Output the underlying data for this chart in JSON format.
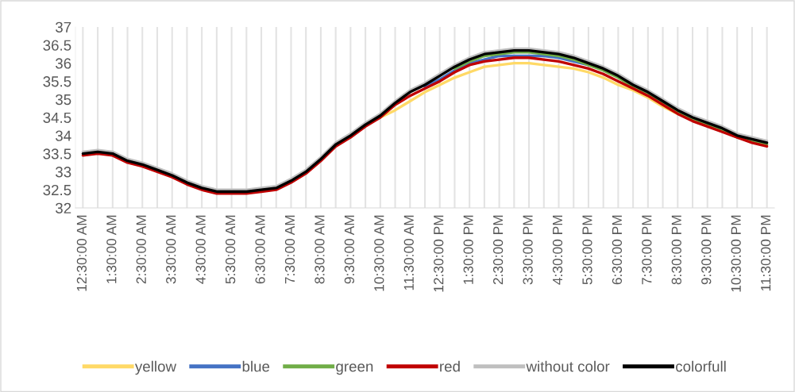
{
  "chart_data": {
    "type": "line",
    "categories": [
      "12:30:00 AM",
      null,
      "1:30:00 AM",
      null,
      "2:30:00 AM",
      null,
      "3:30:00 AM",
      null,
      "4:30:00 AM",
      null,
      "5:30:00 AM",
      null,
      "6:30:00 AM",
      null,
      "7:30:00 AM",
      null,
      "8:30:00 AM",
      null,
      "9:30:00 AM",
      null,
      "10:30:00 AM",
      null,
      "11:30:00 AM",
      null,
      "12:30:00 PM",
      null,
      "1:30:00 PM",
      null,
      "2:30:00 PM",
      null,
      "3:30:00 PM",
      null,
      "4:30:00 PM",
      null,
      "5:30:00 PM",
      null,
      "6:30:00 PM",
      null,
      "7:30:00 PM",
      null,
      "8:30:00 PM",
      null,
      "9:30:00 PM",
      null,
      "10:30:00 PM",
      null,
      "11:30:00 PM"
    ],
    "series": [
      {
        "name": "yellow",
        "color": "#ffd966",
        "values": [
          null,
          null,
          null,
          null,
          null,
          null,
          null,
          null,
          null,
          null,
          null,
          null,
          null,
          null,
          null,
          null,
          null,
          null,
          null,
          null,
          34.5,
          34.7,
          34.95,
          35.2,
          35.4,
          35.6,
          35.75,
          35.9,
          35.95,
          36.0,
          36.0,
          35.95,
          35.9,
          35.85,
          35.75,
          35.6,
          35.4,
          35.25,
          35.05,
          34.8,
          34.6,
          null,
          null,
          null,
          null,
          null,
          null
        ]
      },
      {
        "name": "blue",
        "color": "#4472c4",
        "values": [
          null,
          null,
          null,
          null,
          null,
          null,
          null,
          null,
          null,
          null,
          null,
          null,
          null,
          null,
          null,
          null,
          null,
          null,
          null,
          null,
          null,
          null,
          null,
          35.35,
          35.55,
          35.8,
          36.0,
          36.1,
          36.2,
          36.2,
          36.2,
          36.2,
          36.15,
          36.05,
          35.95,
          null,
          null,
          null,
          null,
          null,
          null,
          null,
          null,
          null,
          null,
          null,
          null
        ]
      },
      {
        "name": "green",
        "color": "#70ad47",
        "values": [
          null,
          null,
          null,
          null,
          null,
          null,
          null,
          null,
          null,
          null,
          null,
          null,
          null,
          null,
          null,
          null,
          null,
          null,
          null,
          null,
          null,
          null,
          null,
          null,
          null,
          35.85,
          36.05,
          36.2,
          36.25,
          36.3,
          36.3,
          36.25,
          36.2,
          36.1,
          35.95,
          35.8,
          35.6,
          35.35,
          35.15,
          34.9,
          34.65,
          34.45,
          34.3,
          34.15,
          33.95,
          33.85,
          33.75
        ]
      },
      {
        "name": "red",
        "color": "#c00000",
        "values": [
          33.45,
          33.5,
          33.45,
          33.25,
          33.15,
          33.0,
          32.85,
          32.65,
          32.5,
          32.4,
          32.4,
          32.4,
          32.45,
          32.5,
          32.7,
          32.95,
          33.3,
          33.7,
          33.95,
          34.25,
          34.5,
          34.85,
          35.1,
          35.3,
          35.5,
          35.75,
          35.95,
          36.05,
          36.1,
          36.15,
          36.15,
          36.1,
          36.05,
          35.95,
          35.85,
          35.7,
          35.5,
          35.3,
          35.1,
          34.85,
          34.6,
          34.4,
          34.25,
          34.1,
          33.95,
          33.8,
          33.7
        ]
      },
      {
        "name": "without color",
        "color": "#bfbfbf",
        "values": [
          33.55,
          33.6,
          33.55,
          33.35,
          33.25,
          33.1,
          32.95,
          32.75,
          32.6,
          32.5,
          32.5,
          32.5,
          32.55,
          32.6,
          32.8,
          33.05,
          33.4,
          33.8,
          34.05,
          34.35,
          34.6,
          34.95,
          35.25,
          35.45,
          35.7,
          35.95,
          36.15,
          36.3,
          36.35,
          36.4,
          36.4,
          36.35,
          36.3,
          36.2,
          36.05,
          35.9,
          35.7,
          35.45,
          35.25,
          35.0,
          34.75,
          34.55,
          34.4,
          34.25,
          34.05,
          33.95,
          33.85
        ]
      },
      {
        "name": "colorfull",
        "color": "#000000",
        "values": [
          33.5,
          33.55,
          33.5,
          33.3,
          33.2,
          33.05,
          32.9,
          32.7,
          32.55,
          32.45,
          32.45,
          32.45,
          32.5,
          32.55,
          32.75,
          33.0,
          33.35,
          33.75,
          34.0,
          34.3,
          34.55,
          34.9,
          35.2,
          35.4,
          35.65,
          35.9,
          36.1,
          36.25,
          36.3,
          36.35,
          36.35,
          36.3,
          36.25,
          36.15,
          36.0,
          35.85,
          35.65,
          35.4,
          35.2,
          34.95,
          34.7,
          34.5,
          34.35,
          34.2,
          34.0,
          33.9,
          33.8
        ]
      }
    ],
    "ylim": [
      32,
      37
    ],
    "yticks": [
      32,
      32.5,
      33,
      33.5,
      34,
      34.5,
      35,
      35.5,
      36,
      36.5,
      37
    ],
    "grid": "x",
    "legend": "bottom",
    "marker": "none",
    "line_style": "solid"
  }
}
